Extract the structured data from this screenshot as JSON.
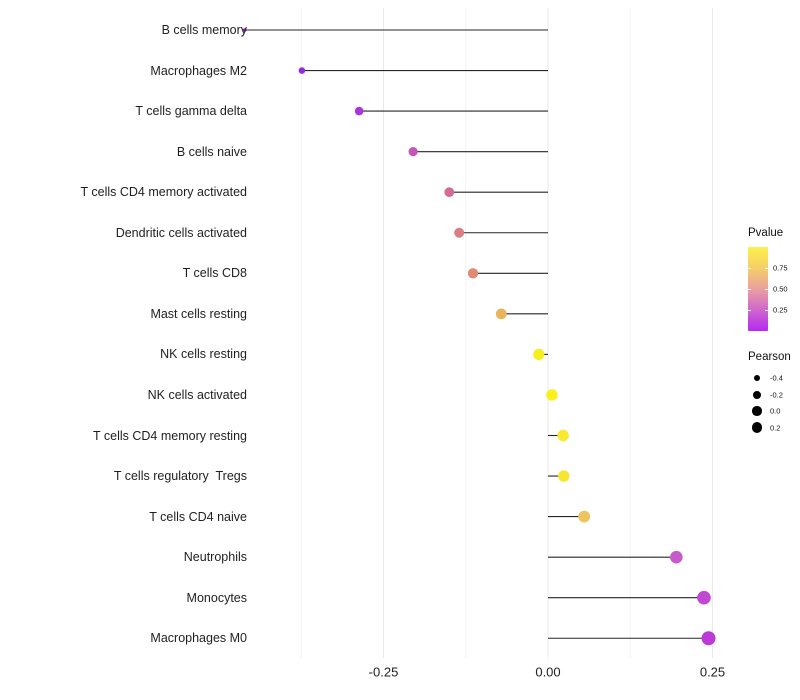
{
  "chart_data": {
    "type": "lollipop",
    "title": "",
    "orientation": "horizontal",
    "xlabel": "",
    "ylabel": "",
    "baseline": 0,
    "xlim": [
      -0.49,
      0.285
    ],
    "x_ticks": {
      "values": [
        -0.25,
        0,
        0.25
      ],
      "labels": [
        "-0.25",
        "0.00",
        "0.25"
      ]
    },
    "x_minor_gridlines": [
      -0.375,
      -0.125,
      0.125
    ],
    "grid": "vertical major+minor, very light gray, white panel",
    "rows": [
      {
        "label": "B cells memory",
        "pearson": -0.461,
        "color": "#8B1FD9",
        "radius": 1.8
      },
      {
        "label": "Macrophages M2",
        "pearson": -0.374,
        "color": "#962ADF",
        "radius": 3.3
      },
      {
        "label": "T cells gamma delta",
        "pearson": -0.287,
        "color": "#A637DC",
        "radius": 4.3
      },
      {
        "label": "B cells naive",
        "pearson": -0.205,
        "color": "#C456BA",
        "radius": 4.6
      },
      {
        "label": "T cells CD4 memory activated",
        "pearson": -0.15,
        "color": "#D26D98",
        "radius": 4.9
      },
      {
        "label": "Dendritic cells activated",
        "pearson": -0.135,
        "color": "#DA7E86",
        "radius": 5.0
      },
      {
        "label": "T cells CD8",
        "pearson": -0.114,
        "color": "#E08C74",
        "radius": 5.2
      },
      {
        "label": "Mast cells resting",
        "pearson": -0.071,
        "color": "#EAB45C",
        "radius": 5.4
      },
      {
        "label": "NK cells resting",
        "pearson": -0.014,
        "color": "#F8EE1F",
        "radius": 5.6
      },
      {
        "label": "NK cells activated",
        "pearson": 0.006,
        "color": "#FAF01A",
        "radius": 5.7
      },
      {
        "label": "T cells CD4 memory resting",
        "pearson": 0.023,
        "color": "#F9E92B",
        "radius": 5.7
      },
      {
        "label": "T cells regulatory  Tregs",
        "pearson": 0.024,
        "color": "#F8E52E",
        "radius": 5.7
      },
      {
        "label": "T cells CD4 naive",
        "pearson": 0.055,
        "color": "#EFC35F",
        "radius": 5.9
      },
      {
        "label": "Neutrophils",
        "pearson": 0.195,
        "color": "#C75BCB",
        "radius": 6.3
      },
      {
        "label": "Monocytes",
        "pearson": 0.237,
        "color": "#C148D3",
        "radius": 6.8
      },
      {
        "label": "Macrophages M0",
        "pearson": 0.244,
        "color": "#BC3BD8",
        "radius": 7.0
      }
    ],
    "legend": {
      "pvalue": {
        "title": "Pvalue",
        "tick_labels": [
          "0.75",
          "0.50",
          "0.25"
        ],
        "tick_values": [
          0.75,
          0.5,
          0.25
        ],
        "range": [
          0,
          1
        ],
        "gradient_stops": [
          {
            "at": 0.0,
            "color": "#B32BF2"
          },
          {
            "at": 0.25,
            "color": "#CF66CE"
          },
          {
            "at": 0.5,
            "color": "#E9A0A0"
          },
          {
            "at": 0.75,
            "color": "#F5CE68"
          },
          {
            "at": 1.0,
            "color": "#FCF14B"
          }
        ]
      },
      "pearson": {
        "title": "Pearson",
        "dot_color": "#000000",
        "items": [
          {
            "label": "-0.4",
            "radius": 3.0
          },
          {
            "label": "-0.2",
            "radius": 4.0
          },
          {
            "label": "0.0",
            "radius": 4.7
          },
          {
            "label": "0.2",
            "radius": 5.2
          }
        ]
      }
    },
    "style": {
      "stem_color": "#262626",
      "major_grid_color": "#eaeaea",
      "minor_grid_color": "#f4f4f4",
      "text_color": "#1f1f1f",
      "background": "#ffffff"
    }
  }
}
